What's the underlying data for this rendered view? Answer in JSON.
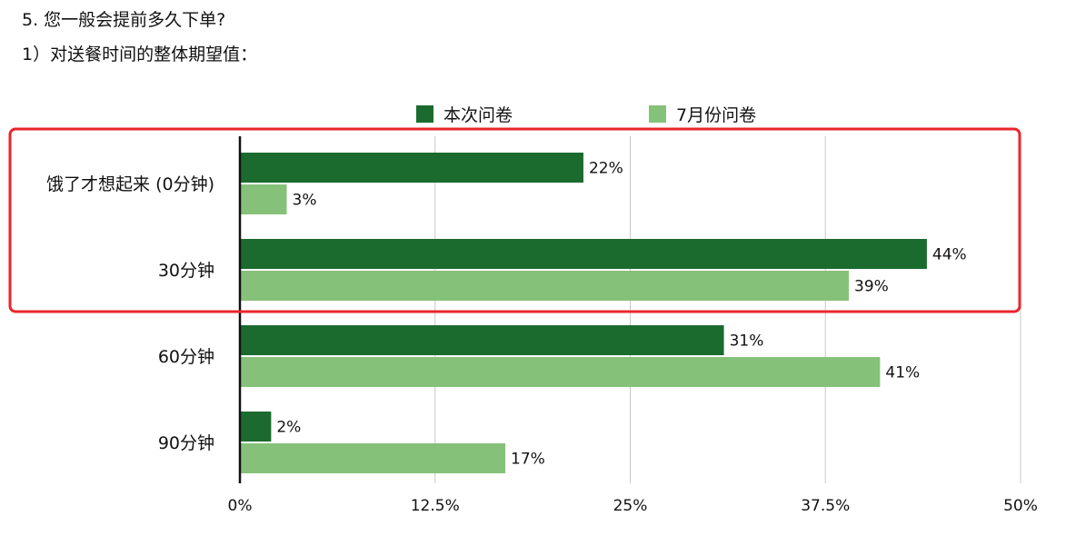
{
  "question": {
    "line1": "5. 您一般会提前多久下单?",
    "line2": "1）对送餐时间的整体期望值："
  },
  "chart_data": {
    "type": "bar",
    "orientation": "horizontal",
    "categories": [
      "饿了才想起来 (0分钟)",
      "30分钟",
      "60分钟",
      "90分钟"
    ],
    "series": [
      {
        "name": "本次问卷",
        "color": "#1b6b2f",
        "values": [
          22,
          44,
          31,
          2
        ],
        "labels": [
          "22%",
          "44%",
          "31%",
          "2%"
        ]
      },
      {
        "name": "7月份问卷",
        "color": "#86c17a",
        "values": [
          3,
          39,
          41,
          17
        ],
        "labels": [
          "3%",
          "39%",
          "41%",
          "17%"
        ]
      }
    ],
    "x_ticks": [
      0,
      12.5,
      25,
      37.5,
      50
    ],
    "x_tick_labels": [
      "0%",
      "12.5%",
      "25%",
      "37.5%",
      "50%"
    ],
    "xlim": [
      0,
      50
    ],
    "grid": true,
    "legend_position": "top",
    "highlight_box_color": "#e8262c"
  }
}
